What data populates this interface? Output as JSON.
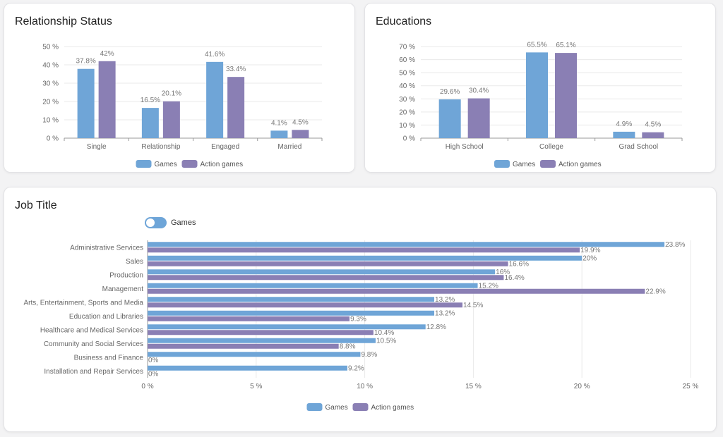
{
  "colors": {
    "games": "#6fa5d7",
    "action": "#8a7fb4",
    "axis": "#666666",
    "grid": "#e9e9e9",
    "label": "#777777"
  },
  "toggle": {
    "label": "Games",
    "on": true
  },
  "chart_data": [
    {
      "type": "bar",
      "title": "Relationship Status",
      "categories": [
        "Single",
        "Relationship",
        "Engaged",
        "Married"
      ],
      "series": [
        {
          "name": "Games",
          "values": [
            37.8,
            16.5,
            41.6,
            4.1
          ],
          "labels": [
            "37.8%",
            "16.5%",
            "41.6%",
            "4.1%"
          ]
        },
        {
          "name": "Action games",
          "values": [
            42,
            20.1,
            33.4,
            4.5
          ],
          "labels": [
            "42%",
            "20.1%",
            "33.4%",
            "4.5%"
          ]
        }
      ],
      "ylim": [
        0,
        50
      ],
      "yticks": [
        "0 %",
        "10 %",
        "20 %",
        "30 %",
        "40 %",
        "50 %"
      ],
      "legend": "bottom"
    },
    {
      "type": "bar",
      "title": "Educations",
      "categories": [
        "High School",
        "College",
        "Grad School"
      ],
      "series": [
        {
          "name": "Games",
          "values": [
            29.6,
            65.5,
            4.9
          ],
          "labels": [
            "29.6%",
            "65.5%",
            "4.9%"
          ]
        },
        {
          "name": "Action games",
          "values": [
            30.4,
            65.1,
            4.5
          ],
          "labels": [
            "30.4%",
            "65.1%",
            "4.5%"
          ]
        }
      ],
      "ylim": [
        0,
        70
      ],
      "yticks": [
        "0 %",
        "10 %",
        "20 %",
        "30 %",
        "40 %",
        "50 %",
        "60 %",
        "70 %"
      ],
      "legend": "bottom"
    },
    {
      "type": "bar",
      "orientation": "horizontal",
      "title": "Job Title",
      "categories": [
        "Administrative Services",
        "Sales",
        "Production",
        "Management",
        "Arts, Entertainment, Sports and Media",
        "Education and Libraries",
        "Healthcare and Medical Services",
        "Community and Social Services",
        "Business and Finance",
        "Installation and Repair Services"
      ],
      "series": [
        {
          "name": "Games",
          "values": [
            23.8,
            20,
            16,
            15.2,
            13.2,
            13.2,
            12.8,
            10.5,
            9.8,
            9.2
          ],
          "labels": [
            "23.8%",
            "20%",
            "16%",
            "15.2%",
            "13.2%",
            "13.2%",
            "12.8%",
            "10.5%",
            "9.8%",
            "9.2%"
          ]
        },
        {
          "name": "Action games",
          "values": [
            19.9,
            16.6,
            16.4,
            22.9,
            14.5,
            9.3,
            10.4,
            8.8,
            0,
            0
          ],
          "labels": [
            "19.9%",
            "16.6%",
            "16.4%",
            "22.9%",
            "14.5%",
            "9.3%",
            "10.4%",
            "8.8%",
            "0%",
            "0%"
          ]
        }
      ],
      "xlim": [
        0,
        25
      ],
      "xticks": [
        "0 %",
        "5 %",
        "10 %",
        "15 %",
        "20 %",
        "25 %"
      ],
      "legend": "bottom"
    }
  ]
}
